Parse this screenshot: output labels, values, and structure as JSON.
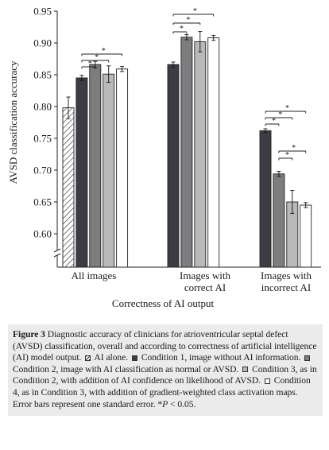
{
  "chart_data": {
    "type": "bar",
    "ylabel": "AVSD classification accuracy",
    "xlabel": "Correctness of AI output",
    "ylim": [
      0.6,
      0.95
    ],
    "y_break": true,
    "yticks": [
      "0.60",
      "0.65",
      "0.70",
      "0.75",
      "0.80",
      "0.85",
      "0.90",
      "0.95"
    ],
    "grid": false,
    "groups": [
      {
        "label_lines": [
          "All images"
        ],
        "values": [
          0.798,
          0.845,
          0.866,
          0.851,
          0.859
        ],
        "errors": [
          0.017,
          0.004,
          0.005,
          0.013,
          0.004
        ]
      },
      {
        "label_lines": [
          "Images with",
          "correct AI"
        ],
        "values": [
          null,
          0.866,
          0.909,
          0.902,
          0.908
        ],
        "errors": [
          null,
          0.004,
          0.004,
          0.016,
          0.004
        ]
      },
      {
        "label_lines": [
          "Images with",
          "incorrect AI"
        ],
        "values": [
          null,
          0.762,
          0.694,
          0.65,
          0.645
        ],
        "errors": [
          null,
          0.003,
          0.004,
          0.018,
          0.004
        ]
      }
    ],
    "series": [
      {
        "name": "AI alone",
        "color": "#ffffff",
        "pattern": "hatch"
      },
      {
        "name": "Condition 1",
        "color": "#3c3d44"
      },
      {
        "name": "Condition 2",
        "color": "#7d7d80"
      },
      {
        "name": "Condition 3",
        "color": "#b9b9b9"
      },
      {
        "name": "Condition 4",
        "color": "#ffffff"
      }
    ],
    "significance_brackets": [
      {
        "group": 0,
        "from": 1,
        "to": 2,
        "label": "*"
      },
      {
        "group": 0,
        "from": 1,
        "to": 3,
        "label": "*"
      },
      {
        "group": 0,
        "from": 1,
        "to": 4,
        "label": "*"
      },
      {
        "group": 1,
        "from": 1,
        "to": 2,
        "label": "*"
      },
      {
        "group": 1,
        "from": 1,
        "to": 3,
        "label": "*"
      },
      {
        "group": 1,
        "from": 1,
        "to": 4,
        "label": "*"
      },
      {
        "group": 2,
        "from": 1,
        "to": 2,
        "label": "*"
      },
      {
        "group": 2,
        "from": 1,
        "to": 3,
        "label": "*"
      },
      {
        "group": 2,
        "from": 1,
        "to": 4,
        "label": "*"
      },
      {
        "group": 2,
        "from": 2,
        "to": 3,
        "label": "*"
      },
      {
        "group": 2,
        "from": 2,
        "to": 4,
        "label": "*"
      }
    ]
  },
  "caption": {
    "label": "Figure 3",
    "text_1": " Diagnostic accuracy of clinicians for atrioventricular septal defect (AVSD) classification, overall and according to correctness of artificial intelligence (AI) model output.",
    "text_2": " AI alone.",
    "text_3": " Condition 1, image without AI information.",
    "text_4": " Condition 2, image with AI classification as normal or AVSD.",
    "text_5": " Condition 3, as in Condition 2, with addition of AI confidence on likelihood of AVSD.",
    "text_6": " Condition 4, as in Condition 3, with addition of gradient-weighted class activation maps. Error bars represent one standard error. *",
    "p_symbol": "P",
    "text_7": " < 0.05."
  }
}
